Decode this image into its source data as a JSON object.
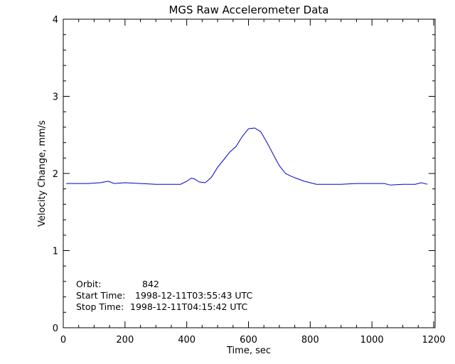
{
  "chart_data": {
    "type": "line",
    "title": "MGS Raw Accelerometer Data",
    "xlabel": "Time, sec",
    "ylabel": "Velocity Change, mm/s",
    "xlim": [
      0,
      1200
    ],
    "ylim": [
      0,
      4
    ],
    "x_ticks": [
      "0",
      "200",
      "400",
      "600",
      "800",
      "1000",
      "1200"
    ],
    "y_ticks": [
      "0",
      "1",
      "2",
      "3",
      "4"
    ],
    "grid": false,
    "series_color": "#0000cc",
    "series": [
      {
        "x": [
          10,
          40,
          80,
          120,
          145,
          165,
          200,
          250,
          300,
          340,
          380,
          400,
          415,
          425,
          440,
          460,
          480,
          500,
          520,
          540,
          560,
          580,
          600,
          620,
          640,
          660,
          680,
          700,
          720,
          740,
          760,
          780,
          800,
          820,
          850,
          900,
          950,
          1000,
          1040,
          1060,
          1100,
          1140,
          1160,
          1180
        ],
        "y": [
          1.87,
          1.87,
          1.87,
          1.88,
          1.9,
          1.87,
          1.88,
          1.87,
          1.86,
          1.86,
          1.86,
          1.9,
          1.94,
          1.93,
          1.89,
          1.88,
          1.95,
          2.08,
          2.18,
          2.28,
          2.35,
          2.48,
          2.58,
          2.59,
          2.54,
          2.4,
          2.25,
          2.1,
          2.0,
          1.96,
          1.93,
          1.9,
          1.88,
          1.86,
          1.86,
          1.86,
          1.87,
          1.87,
          1.87,
          1.85,
          1.86,
          1.86,
          1.88,
          1.86
        ]
      }
    ]
  },
  "annotation": {
    "orbit_label": "Orbit:",
    "orbit_value": "842",
    "start_label": "Start Time:",
    "start_value": "1998-12-11T03:55:43 UTC",
    "stop_label": "Stop Time:",
    "stop_value": "1998-12-11T04:15:42 UTC"
  }
}
